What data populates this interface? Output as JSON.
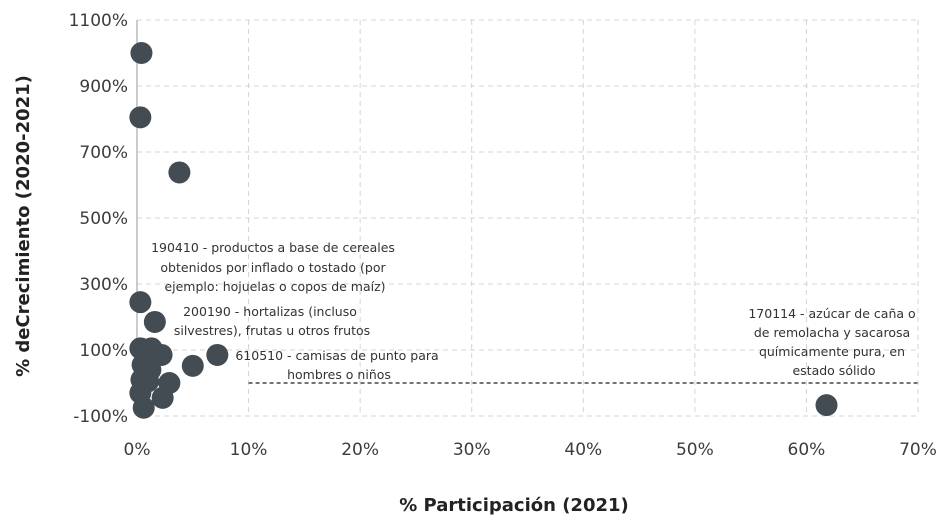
{
  "chart_data": {
    "type": "scatter",
    "title": "",
    "xlabel": "% Participación (2021)",
    "ylabel": "% deCrecimiento (2020-2021)",
    "xlim": [
      0,
      70
    ],
    "ylim": [
      -100,
      1100
    ],
    "x_ticks": [
      0,
      10,
      20,
      30,
      40,
      50,
      60,
      70
    ],
    "x_tick_labels": [
      "0%",
      "10%",
      "20%",
      "30%",
      "40%",
      "50%",
      "60%",
      "70%"
    ],
    "y_ticks": [
      -100,
      100,
      300,
      500,
      700,
      900,
      1100
    ],
    "y_tick_labels": [
      "-100%",
      "100%",
      "300%",
      "500%",
      "700%",
      "900%",
      "1100%"
    ],
    "grid": true,
    "point_color": "#434b53",
    "reference_line": {
      "y": 0,
      "x_start": 10,
      "x_end": 70
    },
    "points": [
      {
        "x": 0.4,
        "y": 1000
      },
      {
        "x": 0.3,
        "y": 805
      },
      {
        "x": 3.8,
        "y": 638
      },
      {
        "x": 0.3,
        "y": 245
      },
      {
        "x": 1.6,
        "y": 185
      },
      {
        "x": 0.3,
        "y": 105
      },
      {
        "x": 1.3,
        "y": 105
      },
      {
        "x": 2.2,
        "y": 85
      },
      {
        "x": 7.2,
        "y": 85
      },
      {
        "x": 5.0,
        "y": 52
      },
      {
        "x": 0.5,
        "y": 55
      },
      {
        "x": 1.2,
        "y": 40
      },
      {
        "x": 0.4,
        "y": 10
      },
      {
        "x": 1.0,
        "y": 5
      },
      {
        "x": 2.9,
        "y": 0
      },
      {
        "x": 0.3,
        "y": -30
      },
      {
        "x": 2.3,
        "y": -45
      },
      {
        "x": 0.6,
        "y": -75
      },
      {
        "x": 61.8,
        "y": -67
      }
    ],
    "annotations": [
      {
        "lines": [
          "190410 - productos a base de cereales",
          "obtenidos por inflado o tostado (por",
          "ejemplo: hojuelas o copos de maíz)"
        ]
      },
      {
        "lines": [
          "200190 - hortalizas (incluso",
          "silvestres), frutas u otros frutos"
        ]
      },
      {
        "lines": [
          "610510 - camisas de punto para",
          "hombres o niños"
        ]
      },
      {
        "lines": [
          "170114 - azúcar de caña o",
          "de remolacha y sacarosa",
          "químicamente pura, en",
          "estado sólido"
        ]
      }
    ]
  }
}
